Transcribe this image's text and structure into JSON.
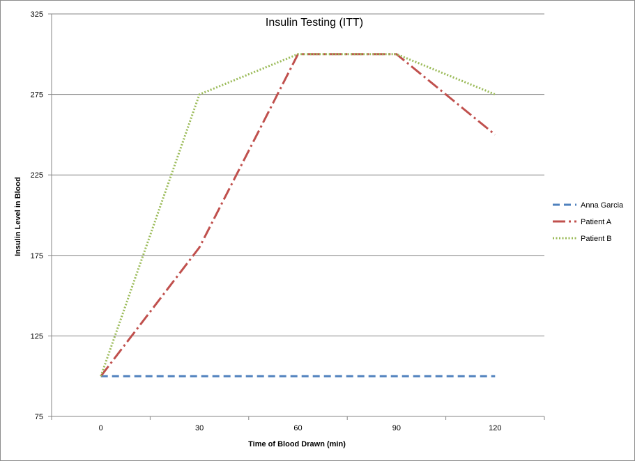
{
  "chart_data": {
    "type": "line",
    "title": "Insulin Testing (ITT)",
    "xlabel": "Time of Blood Drawn (min)",
    "ylabel": "Insulin Level in Blood",
    "categories": [
      "0",
      "30",
      "60",
      "90",
      "120"
    ],
    "x": [
      0,
      30,
      60,
      90,
      120
    ],
    "ylim": [
      75,
      325
    ],
    "yticks": [
      "75",
      "125",
      "175",
      "225",
      "275",
      "325"
    ],
    "grid": true,
    "legend_position": "right",
    "series": [
      {
        "name": "Anna Garcia",
        "values": [
          100,
          100,
          100,
          100,
          100
        ],
        "color": "#4f81bd",
        "dash": "dashed"
      },
      {
        "name": "Patient A",
        "values": [
          100,
          180,
          300,
          300,
          250
        ],
        "color": "#c0504d",
        "dash": "dash-dot"
      },
      {
        "name": "Patient B",
        "values": [
          100,
          275,
          300,
          300,
          275
        ],
        "color": "#9bbb59",
        "dash": "dotted"
      }
    ]
  }
}
